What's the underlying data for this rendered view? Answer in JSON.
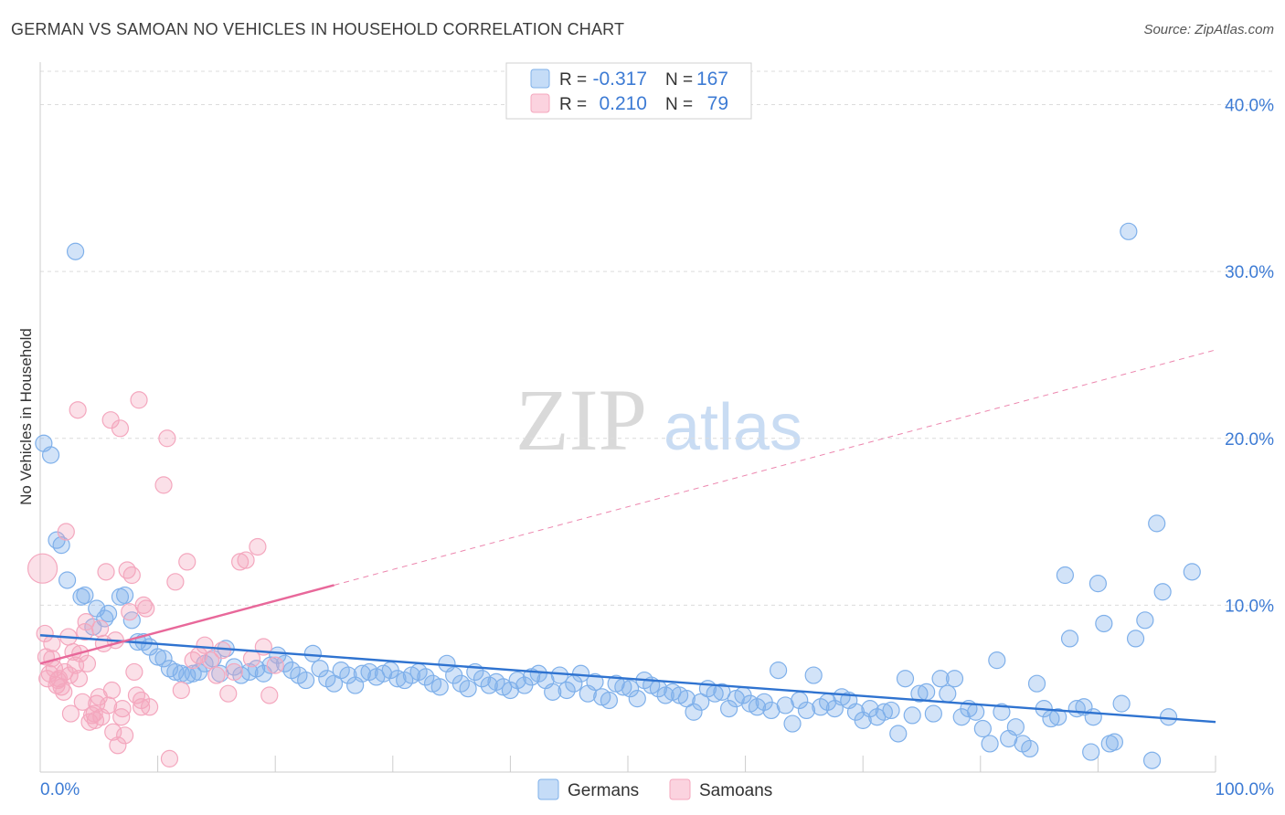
{
  "title": "GERMAN VS SAMOAN NO VEHICLES IN HOUSEHOLD CORRELATION CHART",
  "source": "Source: ZipAtlas.com",
  "watermark": {
    "zip": "ZIP",
    "atlas": "atlas"
  },
  "legend_top": {
    "rows": [
      {
        "r_label": "R =",
        "r_value": "-0.317",
        "n_label": "N =",
        "n_value": "167",
        "color": "#7fb0ea"
      },
      {
        "r_label": "R =",
        "r_value": "0.210",
        "n_label": "N =",
        "n_value": "79",
        "color": "#f4a7be"
      }
    ]
  },
  "legend_bottom": [
    {
      "label": "Germans",
      "color": "#7fb0ea"
    },
    {
      "label": "Samoans",
      "color": "#f4a7be"
    }
  ],
  "chart_data": {
    "type": "scatter",
    "title": "GERMAN VS SAMOAN NO VEHICLES IN HOUSEHOLD CORRELATION CHART",
    "xlabel": "",
    "ylabel": "No Vehicles in Household",
    "xlim": [
      0,
      100
    ],
    "ylim": [
      0,
      42
    ],
    "x_tick_labels": [
      "0.0%",
      "100.0%"
    ],
    "y_ticks": [
      10,
      20,
      30,
      40
    ],
    "y_tick_labels": [
      "10.0%",
      "20.0%",
      "30.0%",
      "40.0%"
    ],
    "grid": true,
    "series": [
      {
        "name": "Germans",
        "color": "#7fb0ea",
        "line_color": "#2f73d0",
        "trend": {
          "x": [
            0,
            100
          ],
          "y": [
            8.2,
            3.0
          ]
        },
        "points": [
          [
            0.3,
            19.7
          ],
          [
            0.9,
            19.0
          ],
          [
            3.0,
            31.2
          ],
          [
            1.4,
            13.9
          ],
          [
            1.8,
            13.6
          ],
          [
            2.3,
            11.5
          ],
          [
            3.5,
            10.5
          ],
          [
            3.8,
            10.6
          ],
          [
            4.5,
            8.7
          ],
          [
            4.8,
            9.8
          ],
          [
            5.5,
            9.2
          ],
          [
            5.8,
            9.5
          ],
          [
            6.8,
            10.5
          ],
          [
            7.2,
            10.6
          ],
          [
            7.8,
            9.1
          ],
          [
            8.3,
            7.8
          ],
          [
            8.8,
            7.8
          ],
          [
            9.3,
            7.5
          ],
          [
            10.0,
            6.9
          ],
          [
            10.5,
            6.8
          ],
          [
            11.0,
            6.2
          ],
          [
            11.5,
            6.0
          ],
          [
            12.0,
            5.9
          ],
          [
            12.5,
            5.8
          ],
          [
            13.0,
            5.9
          ],
          [
            13.5,
            6.0
          ],
          [
            14.0,
            6.5
          ],
          [
            14.7,
            6.8
          ],
          [
            15.3,
            5.9
          ],
          [
            15.8,
            7.4
          ],
          [
            16.5,
            6.3
          ],
          [
            17.1,
            5.8
          ],
          [
            17.8,
            6.0
          ],
          [
            18.4,
            6.2
          ],
          [
            19.0,
            5.9
          ],
          [
            19.6,
            6.4
          ],
          [
            20.2,
            7.0
          ],
          [
            20.8,
            6.5
          ],
          [
            21.4,
            6.1
          ],
          [
            22.0,
            5.8
          ],
          [
            22.6,
            5.5
          ],
          [
            23.2,
            7.1
          ],
          [
            23.8,
            6.2
          ],
          [
            24.4,
            5.6
          ],
          [
            25.0,
            5.3
          ],
          [
            25.6,
            6.1
          ],
          [
            26.2,
            5.8
          ],
          [
            26.8,
            5.2
          ],
          [
            27.4,
            5.9
          ],
          [
            28.0,
            6.0
          ],
          [
            28.6,
            5.7
          ],
          [
            29.2,
            5.9
          ],
          [
            29.8,
            6.1
          ],
          [
            30.4,
            5.6
          ],
          [
            31.0,
            5.5
          ],
          [
            31.6,
            5.8
          ],
          [
            32.2,
            6.0
          ],
          [
            32.8,
            5.7
          ],
          [
            33.4,
            5.3
          ],
          [
            34.0,
            5.1
          ],
          [
            34.6,
            6.5
          ],
          [
            35.2,
            5.8
          ],
          [
            35.8,
            5.3
          ],
          [
            36.4,
            5.0
          ],
          [
            37.0,
            6.0
          ],
          [
            37.6,
            5.6
          ],
          [
            38.2,
            5.2
          ],
          [
            38.8,
            5.4
          ],
          [
            39.4,
            5.1
          ],
          [
            40.0,
            4.9
          ],
          [
            40.6,
            5.5
          ],
          [
            41.2,
            5.2
          ],
          [
            41.8,
            5.7
          ],
          [
            42.4,
            5.9
          ],
          [
            43.0,
            5.5
          ],
          [
            43.6,
            4.8
          ],
          [
            44.2,
            5.8
          ],
          [
            44.8,
            4.9
          ],
          [
            45.4,
            5.3
          ],
          [
            46.0,
            5.9
          ],
          [
            46.6,
            4.7
          ],
          [
            47.2,
            5.4
          ],
          [
            47.8,
            4.5
          ],
          [
            48.4,
            4.3
          ],
          [
            49.0,
            5.3
          ],
          [
            49.6,
            5.1
          ],
          [
            50.2,
            5.0
          ],
          [
            50.8,
            4.4
          ],
          [
            51.4,
            5.5
          ],
          [
            52.0,
            5.2
          ],
          [
            52.6,
            5.0
          ],
          [
            53.2,
            4.6
          ],
          [
            53.8,
            4.8
          ],
          [
            54.4,
            4.6
          ],
          [
            55.0,
            4.4
          ],
          [
            55.6,
            3.6
          ],
          [
            56.2,
            4.2
          ],
          [
            56.8,
            5.0
          ],
          [
            57.4,
            4.7
          ],
          [
            58.0,
            4.8
          ],
          [
            58.6,
            3.8
          ],
          [
            59.2,
            4.4
          ],
          [
            59.8,
            4.6
          ],
          [
            60.4,
            4.1
          ],
          [
            61.0,
            3.9
          ],
          [
            61.6,
            4.2
          ],
          [
            62.2,
            3.7
          ],
          [
            62.8,
            6.1
          ],
          [
            63.4,
            4.0
          ],
          [
            64.0,
            2.9
          ],
          [
            64.6,
            4.3
          ],
          [
            65.2,
            3.7
          ],
          [
            65.8,
            5.8
          ],
          [
            66.4,
            3.9
          ],
          [
            67.0,
            4.2
          ],
          [
            67.6,
            3.8
          ],
          [
            68.2,
            4.5
          ],
          [
            68.8,
            4.3
          ],
          [
            69.4,
            3.6
          ],
          [
            70.0,
            3.1
          ],
          [
            70.6,
            3.8
          ],
          [
            71.2,
            3.3
          ],
          [
            71.8,
            3.6
          ],
          [
            72.4,
            3.7
          ],
          [
            73.0,
            2.3
          ],
          [
            73.6,
            5.6
          ],
          [
            74.2,
            3.4
          ],
          [
            74.8,
            4.7
          ],
          [
            75.4,
            4.8
          ],
          [
            76.0,
            3.5
          ],
          [
            76.6,
            5.6
          ],
          [
            77.2,
            4.7
          ],
          [
            77.8,
            5.6
          ],
          [
            78.4,
            3.3
          ],
          [
            79.0,
            3.8
          ],
          [
            79.6,
            3.6
          ],
          [
            80.2,
            2.6
          ],
          [
            80.8,
            1.7
          ],
          [
            81.4,
            6.7
          ],
          [
            81.8,
            3.6
          ],
          [
            82.4,
            2.0
          ],
          [
            83.0,
            2.7
          ],
          [
            83.6,
            1.7
          ],
          [
            84.2,
            1.4
          ],
          [
            84.8,
            5.3
          ],
          [
            85.4,
            3.8
          ],
          [
            86.0,
            3.2
          ],
          [
            86.6,
            3.3
          ],
          [
            87.2,
            11.8
          ],
          [
            87.6,
            8.0
          ],
          [
            88.2,
            3.8
          ],
          [
            88.8,
            3.9
          ],
          [
            89.4,
            1.2
          ],
          [
            89.6,
            3.3
          ],
          [
            90.0,
            11.3
          ],
          [
            90.5,
            8.9
          ],
          [
            91.0,
            1.7
          ],
          [
            91.4,
            1.8
          ],
          [
            92.0,
            4.1
          ],
          [
            92.6,
            32.4
          ],
          [
            93.2,
            8.0
          ],
          [
            94.0,
            9.1
          ],
          [
            94.6,
            0.7
          ],
          [
            95.0,
            14.9
          ],
          [
            95.5,
            10.8
          ],
          [
            96.0,
            3.3
          ],
          [
            98.0,
            12.0
          ]
        ]
      },
      {
        "name": "Samoans",
        "color": "#f4a7be",
        "line_color": "#e8689a",
        "trend": {
          "x": [
            0,
            25
          ],
          "y": [
            6.5,
            11.2
          ]
        },
        "trend_dashed": {
          "x": [
            25,
            100
          ],
          "y": [
            11.2,
            25.3
          ]
        },
        "points": [
          [
            0.2,
            12.2
          ],
          [
            0.4,
            8.3
          ],
          [
            0.5,
            6.9
          ],
          [
            0.6,
            5.6
          ],
          [
            0.8,
            5.9
          ],
          [
            1.0,
            7.7
          ],
          [
            1.2,
            6.2
          ],
          [
            1.4,
            5.2
          ],
          [
            1.6,
            5.6
          ],
          [
            1.8,
            5.1
          ],
          [
            2.0,
            4.8
          ],
          [
            2.2,
            14.4
          ],
          [
            2.4,
            8.1
          ],
          [
            2.6,
            3.5
          ],
          [
            2.8,
            7.2
          ],
          [
            3.0,
            6.4
          ],
          [
            3.2,
            21.7
          ],
          [
            3.4,
            7.1
          ],
          [
            3.6,
            4.2
          ],
          [
            3.8,
            8.4
          ],
          [
            4.0,
            6.5
          ],
          [
            4.2,
            3.0
          ],
          [
            4.4,
            3.4
          ],
          [
            4.6,
            3.5
          ],
          [
            4.8,
            4.1
          ],
          [
            5.0,
            4.5
          ],
          [
            5.2,
            3.3
          ],
          [
            5.4,
            7.7
          ],
          [
            5.6,
            12.0
          ],
          [
            5.8,
            4.0
          ],
          [
            6.0,
            21.1
          ],
          [
            6.2,
            2.4
          ],
          [
            6.4,
            7.9
          ],
          [
            6.6,
            1.6
          ],
          [
            6.8,
            20.6
          ],
          [
            7.0,
            3.8
          ],
          [
            7.2,
            2.2
          ],
          [
            7.4,
            12.1
          ],
          [
            7.6,
            9.6
          ],
          [
            7.8,
            11.8
          ],
          [
            8.0,
            6.0
          ],
          [
            8.2,
            4.6
          ],
          [
            8.4,
            22.3
          ],
          [
            8.6,
            3.9
          ],
          [
            8.8,
            10.0
          ],
          [
            9.0,
            9.8
          ],
          [
            10.5,
            17.2
          ],
          [
            10.8,
            20.0
          ],
          [
            11.0,
            0.8
          ],
          [
            11.5,
            11.4
          ],
          [
            12.0,
            4.9
          ],
          [
            12.5,
            12.6
          ],
          [
            13.0,
            6.7
          ],
          [
            13.5,
            7.0
          ],
          [
            14.0,
            7.6
          ],
          [
            14.5,
            6.7
          ],
          [
            15.0,
            5.8
          ],
          [
            15.5,
            7.3
          ],
          [
            16.0,
            4.7
          ],
          [
            16.5,
            6.0
          ],
          [
            17.0,
            12.6
          ],
          [
            17.5,
            12.7
          ],
          [
            18.0,
            6.8
          ],
          [
            18.5,
            13.5
          ],
          [
            19.0,
            7.5
          ],
          [
            19.5,
            4.6
          ],
          [
            20.0,
            6.4
          ],
          [
            1.0,
            6.8
          ],
          [
            1.5,
            5.5
          ],
          [
            2.5,
            5.8
          ],
          [
            3.3,
            5.6
          ],
          [
            4.7,
            3.1
          ],
          [
            6.1,
            4.9
          ],
          [
            6.9,
            3.3
          ],
          [
            8.6,
            4.3
          ],
          [
            9.3,
            3.9
          ],
          [
            2.1,
            6.0
          ],
          [
            3.9,
            9.0
          ],
          [
            5.1,
            8.6
          ]
        ]
      }
    ]
  }
}
